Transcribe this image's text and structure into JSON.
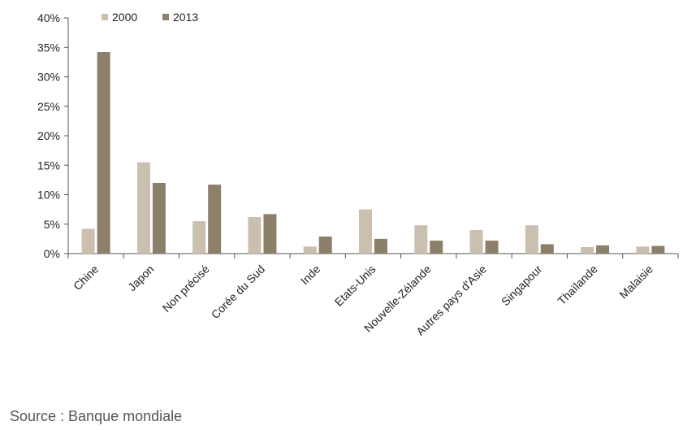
{
  "chart_data": {
    "type": "bar",
    "title": "",
    "xlabel": "",
    "ylabel": "",
    "categories": [
      "Chine",
      "Japon",
      "Non précisé",
      "Corée du Sud",
      "Inde",
      "Etats-Unis",
      "Nouvelle-Zélande",
      "Autres pays d'Asie",
      "Singapour",
      "Thaïlande",
      "Malaisie"
    ],
    "series": [
      {
        "name": "2000",
        "color": "#cbc0b0",
        "values": [
          4.2,
          15.5,
          5.5,
          6.2,
          1.2,
          7.5,
          4.8,
          4.0,
          4.8,
          1.1,
          1.2
        ]
      },
      {
        "name": "2013",
        "color": "#8c806b",
        "values": [
          34.2,
          12.0,
          11.7,
          6.7,
          2.9,
          2.5,
          2.2,
          2.2,
          1.6,
          1.4,
          1.3
        ]
      }
    ],
    "ylim": [
      0,
      40
    ],
    "yticks": [
      "0%",
      "5%",
      "10%",
      "15%",
      "20%",
      "25%",
      "30%",
      "35%",
      "40%"
    ],
    "legend_position": "top-left",
    "grid": false
  },
  "source_text": "Source : Banque mondiale"
}
